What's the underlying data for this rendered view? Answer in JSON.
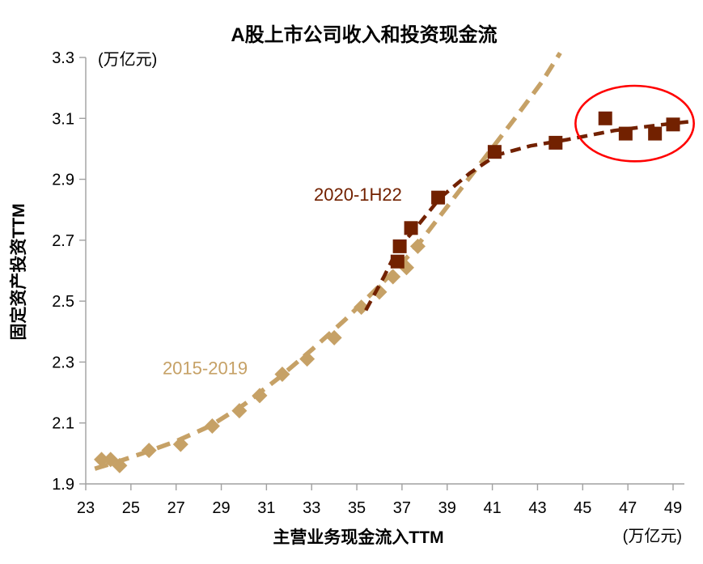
{
  "chart_data": {
    "type": "scatter",
    "title": "A股上市公司收入和投资现金流",
    "xlabel": "主营业务现金流入TTM",
    "ylabel": "固定资产投资TTM",
    "x_unit": "(万亿元)",
    "y_unit": "(万亿元)",
    "xlim": [
      23,
      49
    ],
    "xtick_step": 2,
    "ylim": [
      1.9,
      3.3
    ],
    "ytick_step": 0.2,
    "grid": false,
    "legend_position": "inline-labels",
    "axis_color": "#A0A0A0",
    "series": [
      {
        "name": "2015-2019",
        "marker": "diamond",
        "color": "#C6A166",
        "label_pos": [
          26.4,
          2.26
        ],
        "points": [
          [
            23.7,
            1.98
          ],
          [
            24.1,
            1.98
          ],
          [
            24.5,
            1.96
          ],
          [
            25.8,
            2.01
          ],
          [
            27.2,
            2.03
          ],
          [
            28.6,
            2.09
          ],
          [
            29.8,
            2.14
          ],
          [
            30.7,
            2.19
          ],
          [
            31.7,
            2.26
          ],
          [
            32.8,
            2.31
          ],
          [
            34.0,
            2.38
          ],
          [
            35.2,
            2.48
          ],
          [
            36.0,
            2.53
          ],
          [
            36.6,
            2.58
          ],
          [
            37.2,
            2.61
          ],
          [
            37.7,
            2.68
          ]
        ],
        "trend": [
          [
            23.4,
            1.95
          ],
          [
            24.3,
            1.97
          ],
          [
            25.5,
            2.0
          ],
          [
            27.0,
            2.04
          ],
          [
            28.5,
            2.09
          ],
          [
            30.0,
            2.16
          ],
          [
            31.5,
            2.245
          ],
          [
            33.0,
            2.34
          ],
          [
            34.5,
            2.44
          ],
          [
            36.0,
            2.55
          ],
          [
            37.5,
            2.665
          ],
          [
            39.0,
            2.81
          ],
          [
            40.5,
            2.955
          ],
          [
            42.0,
            3.1
          ],
          [
            43.2,
            3.22
          ],
          [
            44.0,
            3.315
          ]
        ]
      },
      {
        "name": "2020-1H22",
        "marker": "square",
        "color": "#722100",
        "label_pos": [
          33.1,
          2.83
        ],
        "points": [
          [
            36.8,
            2.63
          ],
          [
            36.9,
            2.68
          ],
          [
            37.4,
            2.74
          ],
          [
            38.6,
            2.84
          ],
          [
            41.1,
            2.99
          ],
          [
            43.8,
            3.02
          ],
          [
            46.0,
            3.1
          ],
          [
            46.9,
            3.05
          ],
          [
            48.2,
            3.05
          ],
          [
            49.0,
            3.08
          ]
        ],
        "trend": [
          [
            35.4,
            2.47
          ],
          [
            36.2,
            2.58
          ],
          [
            36.8,
            2.67
          ],
          [
            37.5,
            2.73
          ],
          [
            38.7,
            2.84
          ],
          [
            40.0,
            2.92
          ],
          [
            41.2,
            2.98
          ],
          [
            42.7,
            3.01
          ],
          [
            44.3,
            3.03
          ],
          [
            46.4,
            3.06
          ],
          [
            48.6,
            3.08
          ],
          [
            49.8,
            3.09
          ]
        ]
      }
    ],
    "annotations": [
      {
        "type": "ellipse",
        "center": [
          47.3,
          3.083
        ],
        "rx_units": 2.62,
        "ry_units": 0.124,
        "color": "#FF0000",
        "meaning": "highlight of latest 2020-1H22 points"
      }
    ]
  }
}
